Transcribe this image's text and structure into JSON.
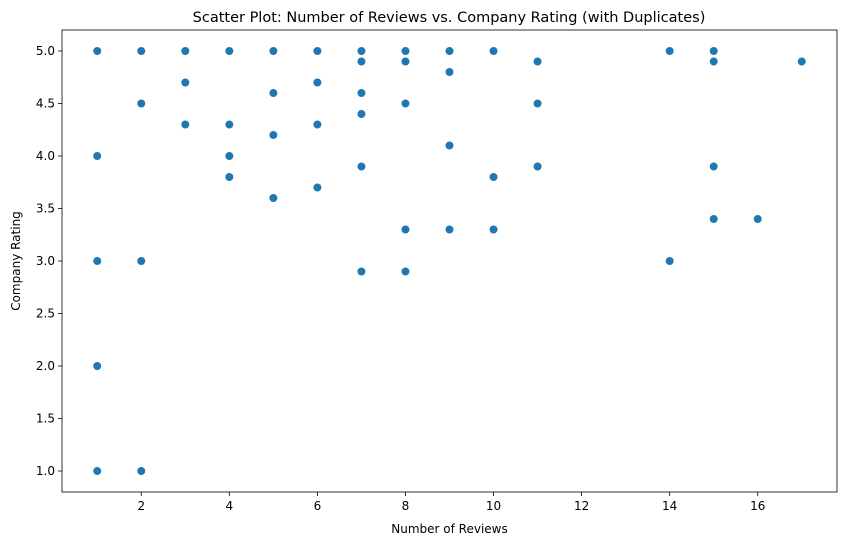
{
  "chart_data": {
    "type": "scatter",
    "title": "Scatter Plot: Number of Reviews vs. Company Rating (with Duplicates)",
    "xlabel": "Number of Reviews",
    "ylabel": "Company Rating",
    "xlim": [
      0.2,
      17.8
    ],
    "ylim": [
      0.8,
      5.2
    ],
    "xticks": [
      2,
      4,
      6,
      8,
      10,
      12,
      14,
      16
    ],
    "xtick_labels": [
      "2",
      "4",
      "6",
      "8",
      "10",
      "12",
      "14",
      "16"
    ],
    "yticks": [
      1.0,
      1.5,
      2.0,
      2.5,
      3.0,
      3.5,
      4.0,
      4.5,
      5.0
    ],
    "ytick_labels": [
      "1.0",
      "1.5",
      "2.0",
      "2.5",
      "3.0",
      "3.5",
      "4.0",
      "4.5",
      "5.0"
    ],
    "grid": false,
    "marker_color": "#1f77b4",
    "points": [
      [
        1,
        5.0
      ],
      [
        1,
        4.0
      ],
      [
        1,
        3.0
      ],
      [
        1,
        2.0
      ],
      [
        1,
        1.0
      ],
      [
        2,
        5.0
      ],
      [
        2,
        4.5
      ],
      [
        2,
        3.0
      ],
      [
        2,
        1.0
      ],
      [
        3,
        5.0
      ],
      [
        3,
        4.7
      ],
      [
        3,
        4.3
      ],
      [
        4,
        5.0
      ],
      [
        4,
        4.3
      ],
      [
        4,
        4.0
      ],
      [
        4,
        3.8
      ],
      [
        5,
        5.0
      ],
      [
        5,
        4.6
      ],
      [
        5,
        4.2
      ],
      [
        5,
        3.6
      ],
      [
        6,
        5.0
      ],
      [
        6,
        4.7
      ],
      [
        6,
        4.3
      ],
      [
        6,
        3.7
      ],
      [
        7,
        5.0
      ],
      [
        7,
        4.9
      ],
      [
        7,
        4.6
      ],
      [
        7,
        4.4
      ],
      [
        7,
        3.9
      ],
      [
        7,
        2.9
      ],
      [
        8,
        5.0
      ],
      [
        8,
        4.9
      ],
      [
        8,
        4.5
      ],
      [
        8,
        3.3
      ],
      [
        8,
        2.9
      ],
      [
        9,
        5.0
      ],
      [
        9,
        4.8
      ],
      [
        9,
        4.1
      ],
      [
        9,
        3.3
      ],
      [
        10,
        5.0
      ],
      [
        10,
        3.8
      ],
      [
        10,
        3.3
      ],
      [
        11,
        4.9
      ],
      [
        11,
        4.5
      ],
      [
        11,
        3.9
      ],
      [
        14,
        5.0
      ],
      [
        14,
        3.0
      ],
      [
        15,
        5.0
      ],
      [
        15,
        4.9
      ],
      [
        15,
        3.9
      ],
      [
        15,
        3.4
      ],
      [
        16,
        3.4
      ],
      [
        17,
        4.9
      ]
    ]
  }
}
